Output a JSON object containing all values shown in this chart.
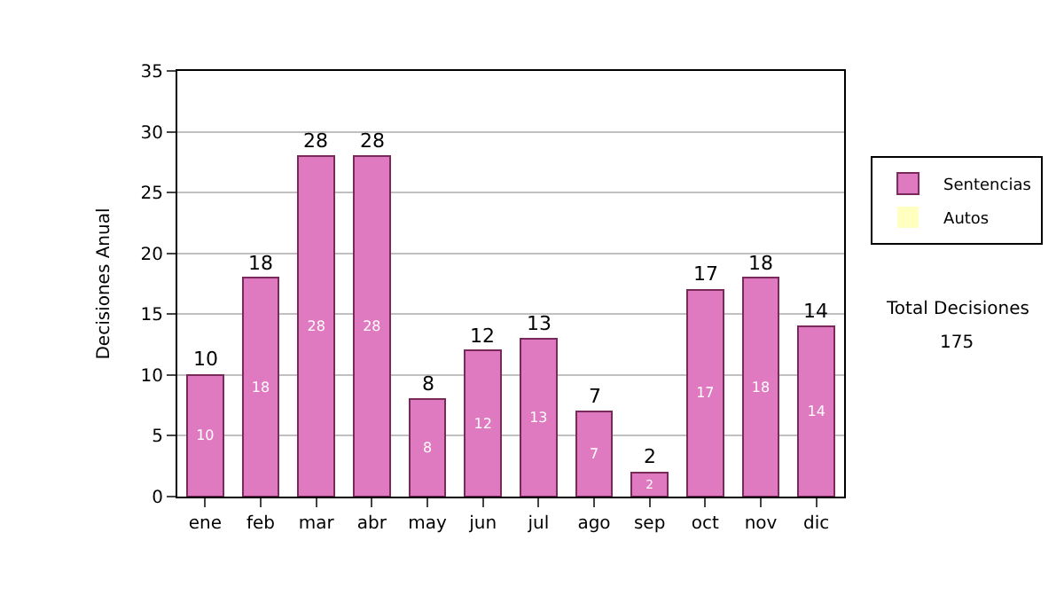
{
  "chart_data": {
    "type": "bar",
    "stacked": true,
    "ylabel": "Decisiones Anual",
    "categories": [
      "ene",
      "feb",
      "mar",
      "abr",
      "may",
      "jun",
      "jul",
      "ago",
      "sep",
      "oct",
      "nov",
      "dic"
    ],
    "series": [
      {
        "name": "Sentencias",
        "color": "#e07ac0",
        "values": [
          10,
          18,
          28,
          28,
          8,
          12,
          13,
          7,
          2,
          17,
          18,
          14
        ],
        "value_labels": [
          "10",
          "18",
          "28",
          "28",
          "8",
          "12",
          "13",
          "7",
          "2",
          "17",
          "18",
          "14"
        ]
      },
      {
        "name": "Autos",
        "color": "#ffffc0",
        "values": [
          0,
          0,
          0,
          0,
          0,
          0,
          0,
          0,
          0,
          0,
          0,
          0
        ]
      }
    ],
    "totals": [
      "10",
      "18",
      "28",
      "28",
      "8",
      "12",
      "13",
      "7",
      "2",
      "17",
      "18",
      "14"
    ],
    "ylim": [
      0,
      35
    ],
    "yticks": [
      0,
      5,
      10,
      15,
      20,
      25,
      30,
      35
    ],
    "grid": "y",
    "legend": "right",
    "annotations": [
      "Total Decisiones",
      "175"
    ]
  }
}
